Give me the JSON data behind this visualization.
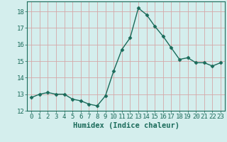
{
  "x": [
    0,
    1,
    2,
    3,
    4,
    5,
    6,
    7,
    8,
    9,
    10,
    11,
    12,
    13,
    14,
    15,
    16,
    17,
    18,
    19,
    20,
    21,
    22,
    23
  ],
  "y": [
    12.8,
    13.0,
    13.1,
    13.0,
    13.0,
    12.7,
    12.6,
    12.4,
    12.3,
    12.9,
    14.4,
    15.7,
    16.4,
    18.2,
    17.8,
    17.1,
    16.5,
    15.8,
    15.1,
    15.2,
    14.9,
    14.9,
    14.7,
    14.9
  ],
  "xlabel": "Humidex (Indice chaleur)",
  "ylim": [
    12,
    18.6
  ],
  "xlim": [
    -0.5,
    23.5
  ],
  "line_color": "#1a6b5a",
  "marker": "D",
  "marker_size": 2.5,
  "bg_color": "#d4eeed",
  "grid_color": "#d4a8a8",
  "yticks": [
    12,
    13,
    14,
    15,
    16,
    17,
    18
  ],
  "xticks": [
    0,
    1,
    2,
    3,
    4,
    5,
    6,
    7,
    8,
    9,
    10,
    11,
    12,
    13,
    14,
    15,
    16,
    17,
    18,
    19,
    20,
    21,
    22,
    23
  ],
  "tick_label_size": 6.5,
  "xlabel_size": 7.5,
  "linewidth": 1.0
}
